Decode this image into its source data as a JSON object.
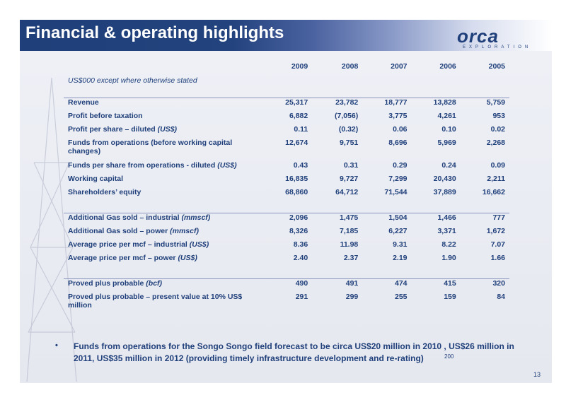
{
  "slide": {
    "title": "Financial & operating highlights",
    "logo_word": "orca",
    "logo_sub": "EXPLORATION",
    "page_number": "13",
    "footnote_mark": "200"
  },
  "table": {
    "units_note": "US$000 except where otherwise stated",
    "years": [
      "2009",
      "2008",
      "2007",
      "2006",
      "2005"
    ],
    "groups": [
      {
        "rows": [
          {
            "label": "Revenue",
            "note": "",
            "values": [
              "25,317",
              "23,782",
              "18,777",
              "13,828",
              "5,759"
            ]
          },
          {
            "label": "Profit before taxation",
            "note": "",
            "values": [
              "6,882",
              "(7,056)",
              "3,775",
              "4,261",
              "953"
            ]
          },
          {
            "label": "Profit per share – diluted ",
            "note": "(US$)",
            "values": [
              "0.11",
              "(0.32)",
              "0.06",
              "0.10",
              "0.02"
            ]
          },
          {
            "label": "Funds from operations (before working capital changes)",
            "note": "",
            "values": [
              "12,674",
              "9,751",
              "8,696",
              "5,969",
              "2,268"
            ]
          },
          {
            "label": "Funds per share from operations - diluted ",
            "note": "(US$)",
            "values": [
              "0.43",
              "0.31",
              "0.29",
              "0.24",
              "0.09"
            ]
          },
          {
            "label": "Working capital",
            "note": "",
            "values": [
              "16,835",
              "9,727",
              "7,299",
              "20,430",
              "2,211"
            ]
          },
          {
            "label": "Shareholders’ equity",
            "note": "",
            "values": [
              "68,860",
              "64,712",
              "71,544",
              "37,889",
              "16,662"
            ]
          }
        ]
      },
      {
        "rows": [
          {
            "label": "Additional Gas sold – industrial ",
            "note": "(mmscf)",
            "values": [
              "2,096",
              "1,475",
              "1,504",
              "1,466",
              "777"
            ]
          },
          {
            "label": "Additional Gas sold – power ",
            "note": "(mmscf)",
            "values": [
              "8,326",
              "7,185",
              "6,227",
              "3,371",
              "1,672"
            ]
          },
          {
            "label": "Average price per mcf – industrial ",
            "note": "(US$)",
            "values": [
              "8.36",
              "11.98",
              "9.31",
              "8.22",
              "7.07"
            ]
          },
          {
            "label": "Average price per mcf – power ",
            "note": "(US$)",
            "values": [
              "2.40",
              "2.37",
              "2.19",
              "1.90",
              "1.66"
            ]
          }
        ]
      },
      {
        "rows": [
          {
            "label": "Proved plus probable ",
            "note": "(bcf)",
            "values": [
              "490",
              "491",
              "474",
              "415",
              "320"
            ]
          },
          {
            "label": "Proved plus probable – present value at 10% US$ million",
            "note": "",
            "values": [
              "291",
              "299",
              "255",
              "159",
              "84"
            ]
          }
        ]
      }
    ]
  },
  "bullet": {
    "symbol": "•",
    "text": "Funds from operations for the Songo Songo field forecast to be circa US$20 million in 2010 , US$26 million in 2011, US$35 million in 2012  (providing timely infrastructure development and re-rating)"
  }
}
